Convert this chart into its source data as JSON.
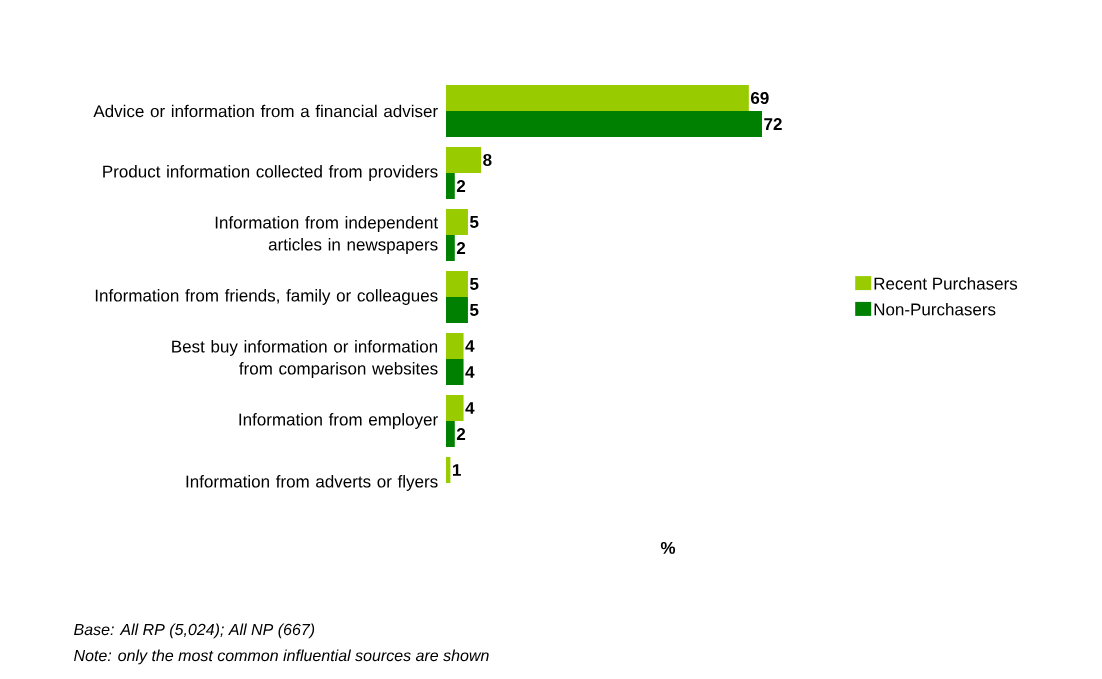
{
  "chart_data": {
    "type": "bar",
    "orientation": "horizontal",
    "xlabel": "%",
    "categories": [
      "Advice or information from a financial adviser",
      "Product information collected from providers",
      "Information from independent articles in newspapers",
      "Information from friends, family or colleagues",
      "Best buy information or information from comparison websites",
      "Information from employer",
      "Information from adverts or flyers"
    ],
    "series": [
      {
        "name": "Recent Purchasers",
        "color": "#99cc00",
        "values": [
          69,
          8,
          5,
          5,
          4,
          4,
          1
        ]
      },
      {
        "name": "Non-Purchasers",
        "color": "#008000",
        "values": [
          72,
          2,
          2,
          5,
          4,
          2,
          null
        ]
      }
    ],
    "data_labels": true,
    "legend": "right",
    "annotations": [
      "Base: All RP (5,024); All NP (667)",
      "Note: only the most common influential sources are shown"
    ]
  }
}
